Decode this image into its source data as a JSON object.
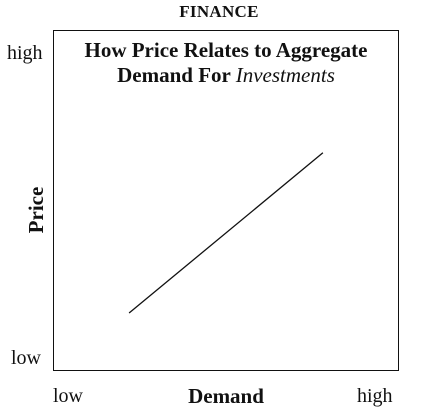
{
  "header": {
    "title": "FINANCE"
  },
  "chart_data": {
    "type": "line",
    "title_main": "How Price Relates to Aggregate Demand For ",
    "title_italic": "Investments",
    "xlabel": "Demand",
    "ylabel": "Price",
    "x_tick_labels": [
      "low",
      "high"
    ],
    "y_tick_labels": [
      "low",
      "high"
    ],
    "xlim": [
      0,
      1
    ],
    "ylim": [
      0,
      1
    ],
    "grid": false,
    "series": [
      {
        "x": [
          0.22,
          0.78
        ],
        "y": [
          0.17,
          0.64
        ]
      }
    ],
    "line_color": "#111111"
  }
}
